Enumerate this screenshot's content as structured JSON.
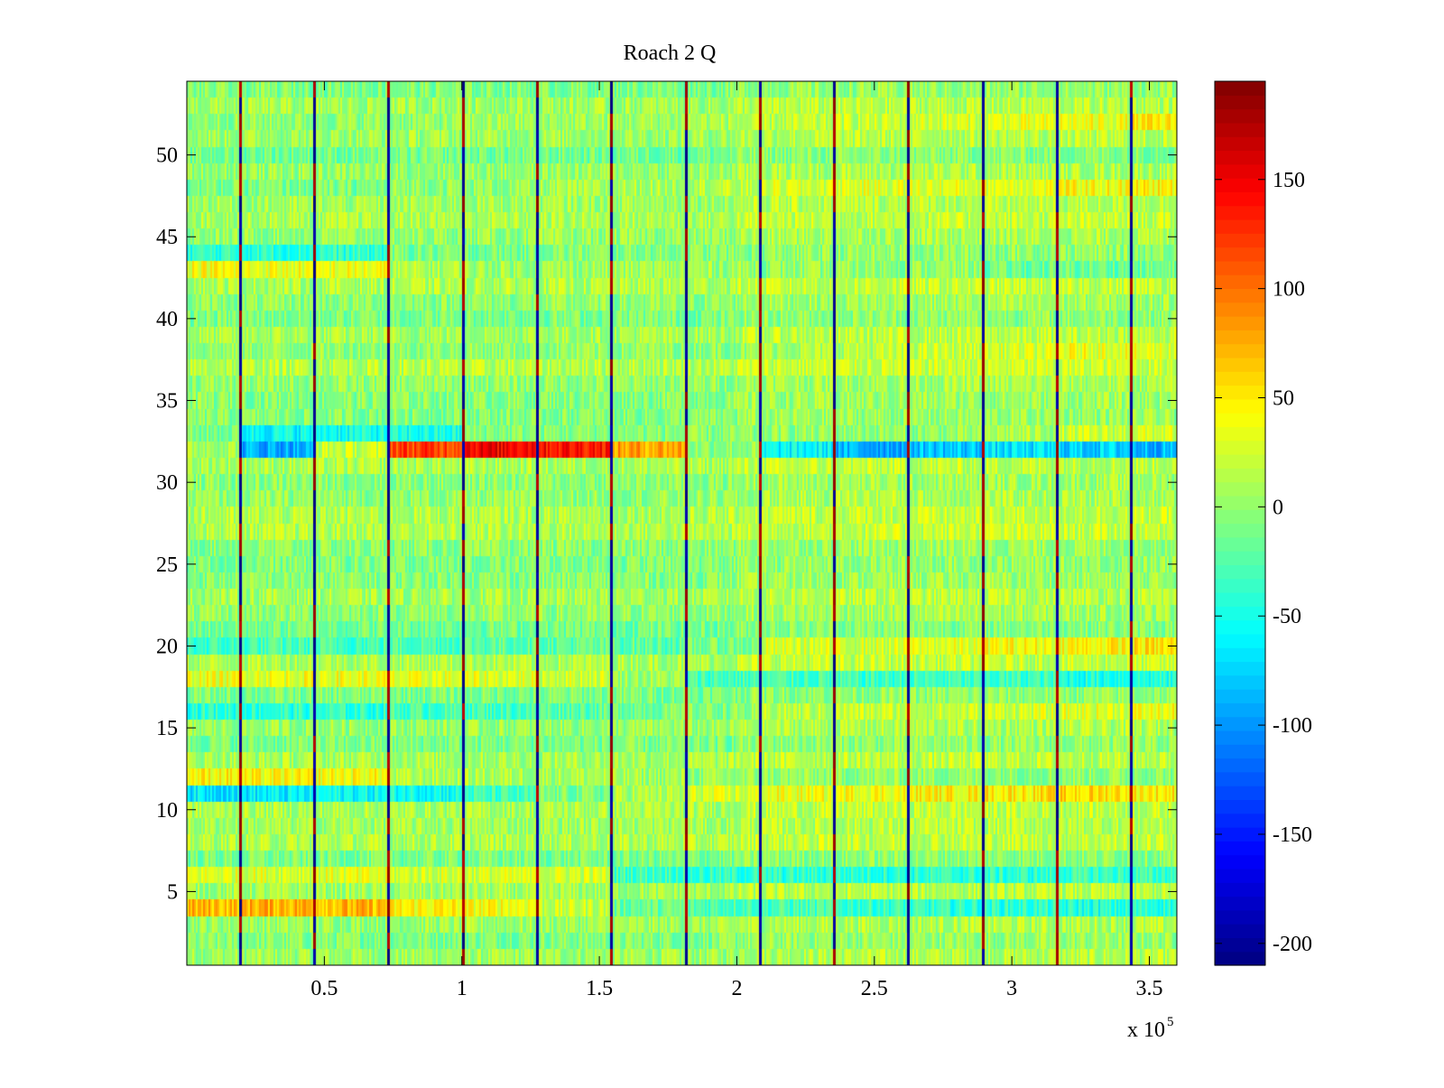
{
  "chart_data": {
    "type": "heatmap",
    "title": "Roach 2 Q",
    "xlabel": "",
    "ylabel": "",
    "x_multiplier_label": "x 10",
    "x_multiplier_exponent": "5",
    "xlim": [
      0,
      360000
    ],
    "ylim": [
      0.5,
      54.5
    ],
    "x_ticks": [
      {
        "value": 50000,
        "label": "0.5"
      },
      {
        "value": 100000,
        "label": "1"
      },
      {
        "value": 150000,
        "label": "1.5"
      },
      {
        "value": 200000,
        "label": "2"
      },
      {
        "value": 250000,
        "label": "2.5"
      },
      {
        "value": 300000,
        "label": "3"
      },
      {
        "value": 350000,
        "label": "3.5"
      }
    ],
    "y_ticks": [
      {
        "value": 5,
        "label": "5"
      },
      {
        "value": 10,
        "label": "10"
      },
      {
        "value": 15,
        "label": "15"
      },
      {
        "value": 20,
        "label": "20"
      },
      {
        "value": 25,
        "label": "25"
      },
      {
        "value": 30,
        "label": "30"
      },
      {
        "value": 35,
        "label": "35"
      },
      {
        "value": 40,
        "label": "40"
      },
      {
        "value": 45,
        "label": "45"
      },
      {
        "value": 50,
        "label": "50"
      }
    ],
    "colorbar": {
      "colormap": "jet",
      "range": [
        -210,
        195
      ],
      "ticks": [
        {
          "value": 150,
          "label": "150"
        },
        {
          "value": 100,
          "label": "100"
        },
        {
          "value": 50,
          "label": "50"
        },
        {
          "value": 0,
          "label": "0"
        },
        {
          "value": -50,
          "label": "-50"
        },
        {
          "value": -100,
          "label": "-100"
        },
        {
          "value": -150,
          "label": "-150"
        },
        {
          "value": -200,
          "label": "-200"
        }
      ]
    },
    "rows": 54,
    "periodic_dip_x": [
      19000,
      46000,
      73000,
      100000,
      127000,
      154000,
      181000,
      208000,
      235000,
      262000,
      289000,
      316000,
      343000
    ],
    "segment_edges_x": [
      0,
      19000,
      46000,
      73000,
      100000,
      127000,
      154000,
      181000,
      208000,
      235000,
      262000,
      289000,
      316000,
      343000,
      360000
    ],
    "row_segment_means": {
      "32": [
        10,
        -90,
        20,
        120,
        150,
        140,
        80,
        0,
        -60,
        -90,
        -80,
        -70,
        -75,
        -85,
        -90
      ],
      "33": [
        -10,
        -55,
        -50,
        -50,
        -5,
        -5,
        -5,
        -5,
        0,
        0,
        0,
        10,
        20,
        25,
        25
      ],
      "44": [
        -40,
        -40,
        -40,
        -10,
        -10,
        -5,
        -5,
        -5,
        0,
        0,
        0,
        0,
        0,
        0,
        0
      ],
      "43": [
        40,
        35,
        35,
        10,
        5,
        5,
        5,
        5,
        0,
        0,
        0,
        -15,
        -15,
        -15,
        -15
      ],
      "20": [
        -35,
        -30,
        -30,
        -25,
        -20,
        -20,
        -20,
        -10,
        25,
        25,
        30,
        40,
        45,
        50,
        50
      ],
      "18": [
        35,
        35,
        35,
        30,
        30,
        25,
        5,
        -30,
        -30,
        -35,
        -35,
        -35,
        -45,
        -45,
        -40
      ],
      "16": [
        -40,
        -40,
        -40,
        -30,
        -30,
        -20,
        -10,
        -5,
        15,
        20,
        20,
        25,
        30,
        35,
        35
      ],
      "12": [
        45,
        40,
        40,
        10,
        10,
        10,
        5,
        0,
        0,
        0,
        0,
        0,
        0,
        0,
        0
      ],
      "11": [
        -65,
        -65,
        -55,
        -50,
        -35,
        -10,
        10,
        25,
        35,
        40,
        45,
        50,
        55,
        50,
        45
      ],
      "6": [
        30,
        30,
        30,
        25,
        25,
        25,
        -30,
        -40,
        -40,
        -40,
        -40,
        -40,
        -35,
        -35,
        -35
      ],
      "4": [
        70,
        75,
        70,
        45,
        40,
        20,
        -15,
        -25,
        -30,
        -35,
        -40,
        -40,
        -45,
        -40,
        -40
      ],
      "38": [
        0,
        0,
        0,
        0,
        0,
        0,
        0,
        0,
        10,
        15,
        20,
        25,
        35,
        30,
        25
      ],
      "48": [
        -10,
        -10,
        -10,
        0,
        0,
        5,
        10,
        15,
        25,
        30,
        30,
        35,
        40,
        45,
        45
      ],
      "52": [
        0,
        0,
        0,
        0,
        5,
        5,
        5,
        10,
        15,
        20,
        25,
        30,
        35,
        45,
        50
      ],
      "29": [
        0,
        0,
        0,
        0,
        0,
        0,
        0,
        0,
        10,
        15,
        10,
        10,
        10,
        10,
        10
      ]
    },
    "noise_amplitude": 25
  }
}
